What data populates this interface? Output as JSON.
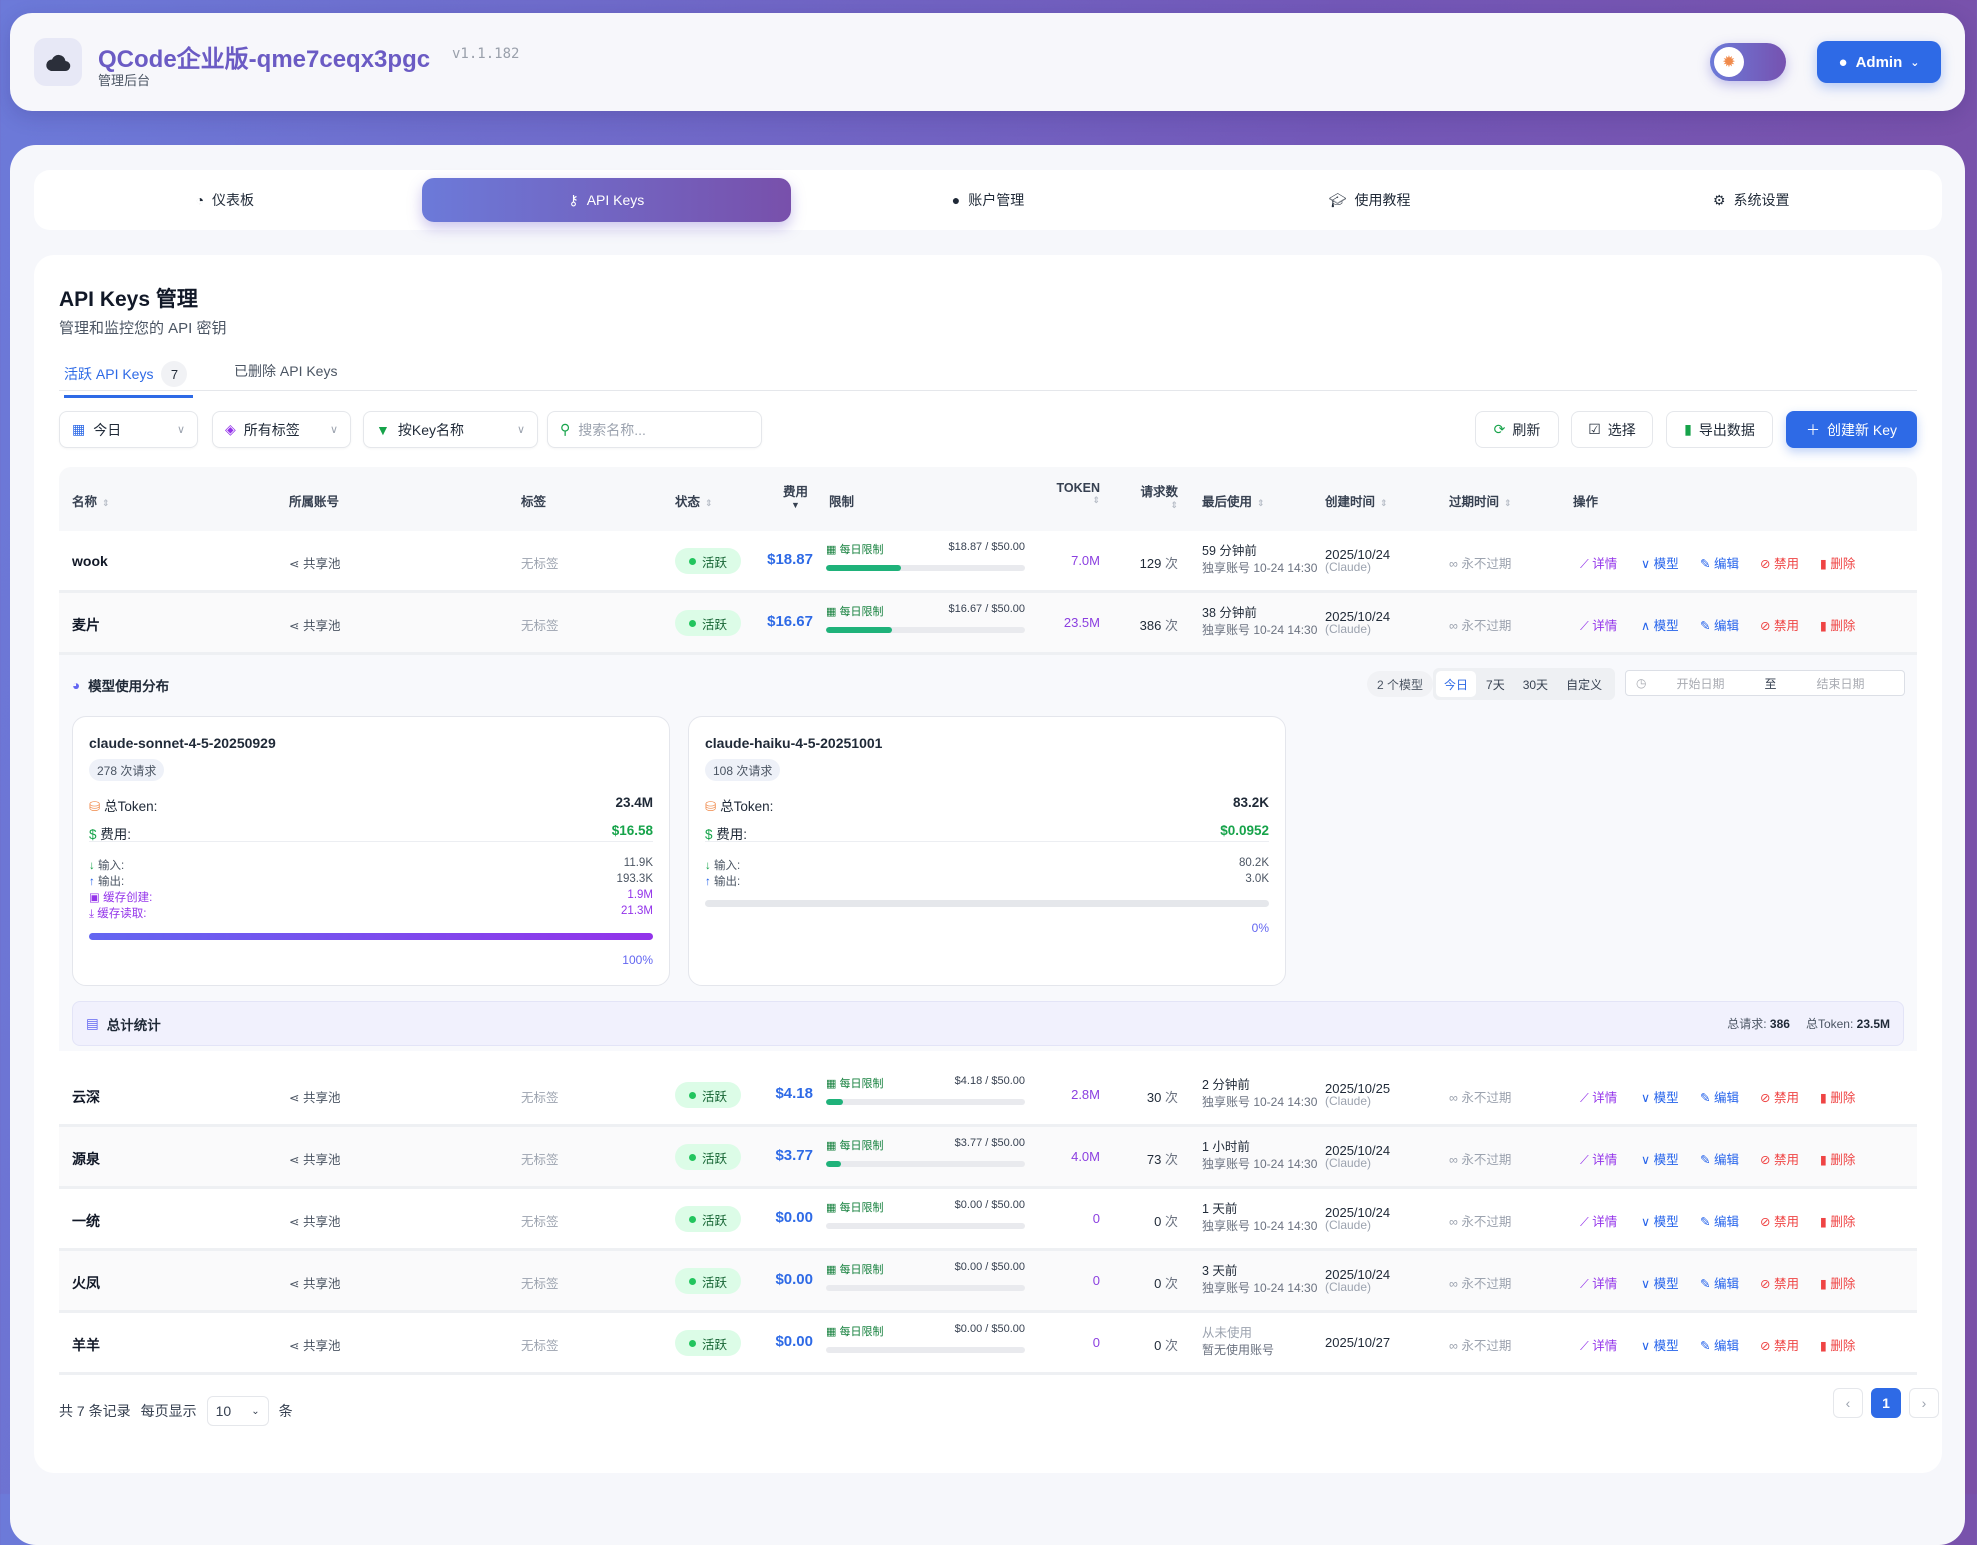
{
  "header": {
    "title": "QCode企业版-qme7ceqx3pgc",
    "version": "v1.1.182",
    "subtitle": "管理后台",
    "admin_label": "Admin"
  },
  "nav": [
    {
      "label": "仪表板",
      "icon": "gauge-icon"
    },
    {
      "label": "API Keys",
      "icon": "key-icon",
      "active": true
    },
    {
      "label": "账户管理",
      "icon": "user-circle-icon"
    },
    {
      "label": "使用教程",
      "icon": "graduation-cap-icon"
    },
    {
      "label": "系统设置",
      "icon": "gears-icon"
    }
  ],
  "page": {
    "title": "API Keys 管理",
    "subtitle": "管理和监控您的 API 密钥"
  },
  "tabs": {
    "active_label": "活跃 API Keys",
    "active_count": "7",
    "deleted_label": "已删除 API Keys"
  },
  "filters": {
    "date": "今日",
    "tags": "所有标签",
    "sort_by": "按Key名称",
    "search_placeholder": "搜索名称..."
  },
  "toolbar": {
    "refresh": "刷新",
    "select": "选择",
    "export": "导出数据",
    "create": "创建新 Key"
  },
  "columns": {
    "name": "名称",
    "account": "所属账号",
    "tag": "标签",
    "status": "状态",
    "cost": "费用",
    "limit": "限制",
    "token": "TOKEN",
    "requests": "请求数",
    "last_used": "最后使用",
    "created": "创建时间",
    "expires": "过期时间",
    "actions": "操作"
  },
  "actions": {
    "detail": "详情",
    "model": "模型",
    "edit": "编辑",
    "disable": "禁用",
    "delete": "删除"
  },
  "rows": [
    {
      "name": "wook",
      "account": "共享池",
      "tag": "无标签",
      "status": "活跃",
      "cost": "$18.87",
      "limit_label": "每日限制",
      "limit_value": "$18.87 / $50.00",
      "limit_pct": 37.7,
      "token": "7.0M",
      "requests": "129",
      "req_unit": "次",
      "last_used": "59 分钟前",
      "last_account": "独享账号 10-24 14:30",
      "created": "2025/10/24",
      "created_sub": "(Claude)",
      "expires": "永不过期",
      "model_expanded": false
    },
    {
      "name": "麦片",
      "account": "共享池",
      "tag": "无标签",
      "status": "活跃",
      "cost": "$16.67",
      "limit_label": "每日限制",
      "limit_value": "$16.67 / $50.00",
      "limit_pct": 33.3,
      "token": "23.5M",
      "requests": "386",
      "req_unit": "次",
      "last_used": "38 分钟前",
      "last_account": "独享账号 10-24 14:30",
      "created": "2025/10/24",
      "created_sub": "(Claude)",
      "expires": "永不过期",
      "model_expanded": true
    },
    {
      "name": "云深",
      "account": "共享池",
      "tag": "无标签",
      "status": "活跃",
      "cost": "$4.18",
      "limit_label": "每日限制",
      "limit_value": "$4.18 / $50.00",
      "limit_pct": 8.4,
      "token": "2.8M",
      "requests": "30",
      "req_unit": "次",
      "last_used": "2 分钟前",
      "last_account": "独享账号 10-24 14:30",
      "created": "2025/10/25",
      "created_sub": "(Claude)",
      "expires": "永不过期",
      "model_expanded": false
    },
    {
      "name": "源泉",
      "account": "共享池",
      "tag": "无标签",
      "status": "活跃",
      "cost": "$3.77",
      "limit_label": "每日限制",
      "limit_value": "$3.77 / $50.00",
      "limit_pct": 7.5,
      "token": "4.0M",
      "requests": "73",
      "req_unit": "次",
      "last_used": "1 小时前",
      "last_account": "独享账号 10-24 14:30",
      "created": "2025/10/24",
      "created_sub": "(Claude)",
      "expires": "永不过期",
      "model_expanded": false
    },
    {
      "name": "一统",
      "account": "共享池",
      "tag": "无标签",
      "status": "活跃",
      "cost": "$0.00",
      "limit_label": "每日限制",
      "limit_value": "$0.00 / $50.00",
      "limit_pct": 0,
      "token": "0",
      "requests": "0",
      "req_unit": "次",
      "last_used": "1 天前",
      "last_account": "独享账号 10-24 14:30",
      "created": "2025/10/24",
      "created_sub": "(Claude)",
      "expires": "永不过期",
      "model_expanded": false
    },
    {
      "name": "火凤",
      "account": "共享池",
      "tag": "无标签",
      "status": "活跃",
      "cost": "$0.00",
      "limit_label": "每日限制",
      "limit_value": "$0.00 / $50.00",
      "limit_pct": 0,
      "token": "0",
      "requests": "0",
      "req_unit": "次",
      "last_used": "3 天前",
      "last_account": "独享账号 10-24 14:30",
      "created": "2025/10/24",
      "created_sub": "(Claude)",
      "expires": "永不过期",
      "model_expanded": false
    },
    {
      "name": "羊羊",
      "account": "共享池",
      "tag": "无标签",
      "status": "活跃",
      "cost": "$0.00",
      "limit_label": "每日限制",
      "limit_value": "$0.00 / $50.00",
      "limit_pct": 0,
      "token": "0",
      "requests": "0",
      "req_unit": "次",
      "last_used": "从未使用",
      "last_account": "暂无使用账号",
      "created": "2025/10/27",
      "expires": "永不过期",
      "model_expanded": false
    }
  ],
  "model_distribution": {
    "title": "模型使用分布",
    "model_count": "2 个模型",
    "ranges": [
      "今日",
      "7天",
      "30天",
      "自定义"
    ],
    "active_range": "今日",
    "start_placeholder": "开始日期",
    "range_sep": "至",
    "end_placeholder": "结束日期",
    "total_token_label": "总Token:",
    "cost_label": "费用:",
    "input_label": "输入:",
    "output_label": "输出:",
    "cache_create_label": "缓存创建:",
    "cache_read_label": "缓存读取:",
    "models": [
      {
        "name": "claude-sonnet-4-5-20250929",
        "requests": "278 次请求",
        "total_token": "23.4M",
        "cost": "$16.58",
        "input": "11.9K",
        "output": "193.3K",
        "cache_create": "1.9M",
        "cache_read": "21.3M",
        "percent": 100,
        "percent_label": "100%"
      },
      {
        "name": "claude-haiku-4-5-20251001",
        "requests": "108 次请求",
        "total_token": "83.2K",
        "cost": "$0.0952",
        "input": "80.2K",
        "output": "3.0K",
        "percent": 0,
        "percent_label": "0%"
      }
    ],
    "summary": {
      "title": "总计统计",
      "total_requests_label": "总请求:",
      "total_requests": "386",
      "total_token_label": "总Token:",
      "total_token": "23.5M"
    }
  },
  "footer": {
    "total_text": "共 7 条记录",
    "per_page_label": "每页显示",
    "per_page": "10",
    "per_page_unit": "条",
    "current_page": "1"
  },
  "colors": {
    "primary": "#2e6ae6",
    "accent_purple": "#7850ab",
    "active_green": "#22c55e",
    "danger": "#ef4444"
  }
}
